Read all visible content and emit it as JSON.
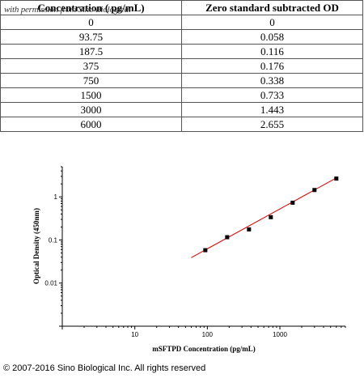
{
  "table": {
    "headers": [
      "Concentration ( pg/mL)",
      "Zero standard subtracted OD"
    ],
    "watermark": "with permission from Sino Biological",
    "rows": [
      [
        "0",
        "0"
      ],
      [
        "93.75",
        "0.058"
      ],
      [
        "187.5",
        "0.116"
      ],
      [
        "375",
        "0.176"
      ],
      [
        "750",
        "0.338"
      ],
      [
        "1500",
        "0.733"
      ],
      [
        "3000",
        "1.443"
      ],
      [
        "6000",
        "2.655"
      ]
    ]
  },
  "chart_data": {
    "type": "scatter",
    "title": "",
    "xlabel": "mSFTPD Concentration (pg/mL)",
    "ylabel": "Optical Density (450nm)",
    "x_scale": "log",
    "y_scale": "log",
    "xlim": [
      1,
      8000
    ],
    "ylim": [
      0.001,
      5
    ],
    "x_ticks": [
      "10",
      "100",
      "1000"
    ],
    "y_ticks": [
      "1",
      "0.1",
      "0.01"
    ],
    "grid": false,
    "series": [
      {
        "x": [
          93.75,
          187.5,
          375,
          750,
          1500,
          3000,
          6000
        ],
        "y": [
          0.058,
          0.116,
          0.176,
          0.338,
          0.733,
          1.443,
          2.655
        ],
        "marker_color": "#000000"
      }
    ],
    "fit_line": {
      "x": [
        60,
        6000
      ],
      "y": [
        0.039,
        2.75
      ],
      "color": "#e00000"
    }
  },
  "copyright": "© 2007-2016 Sino Biological Inc. All rights reserved"
}
